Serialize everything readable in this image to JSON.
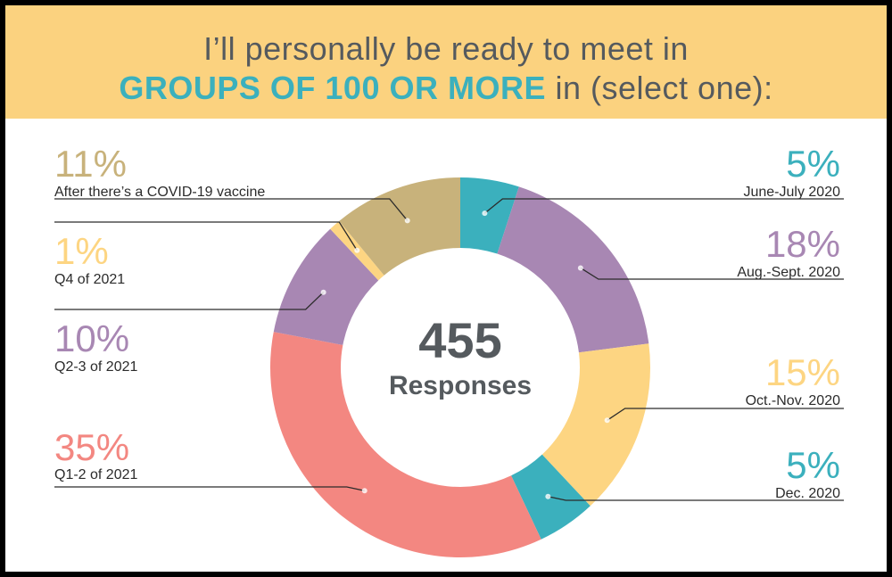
{
  "title": {
    "line1": "I’ll personally be ready to meet in",
    "highlight": "GROUPS OF 100 OR MORE",
    "rest": " in (select one):"
  },
  "center": {
    "number": "455",
    "label": "Responses"
  },
  "colors": {
    "teal": "#3bb0bd",
    "purple": "#a887b3",
    "yellow": "#fdd582",
    "salmon": "#f38781",
    "tan": "#c8b27b",
    "header_bg": "#fbd27f"
  },
  "chart_data": {
    "type": "pie",
    "donut": true,
    "total_responses": 455,
    "slices": [
      {
        "label": "June-July 2020",
        "percent_label": "5%",
        "value": 5,
        "color": "#3bb0bd"
      },
      {
        "label": "Aug.-Sept. 2020",
        "percent_label": "18%",
        "value": 18,
        "color": "#a887b3"
      },
      {
        "label": "Oct.-Nov. 2020",
        "percent_label": "15%",
        "value": 15,
        "color": "#fdd582"
      },
      {
        "label": "Dec. 2020",
        "percent_label": "5%",
        "value": 5,
        "color": "#3bb0bd"
      },
      {
        "label": "Q1-2 of 2021",
        "percent_label": "35%",
        "value": 35,
        "color": "#f38781"
      },
      {
        "label": "Q2-3 of 2021",
        "percent_label": "10%",
        "value": 10,
        "color": "#a887b3"
      },
      {
        "label": "Q4 of 2021",
        "percent_label": "1%",
        "value": 1,
        "color": "#fdd582"
      },
      {
        "label": "After there’s a COVID-19 vaccine",
        "percent_label": "11%",
        "value": 11,
        "color": "#c8b27b"
      }
    ]
  }
}
